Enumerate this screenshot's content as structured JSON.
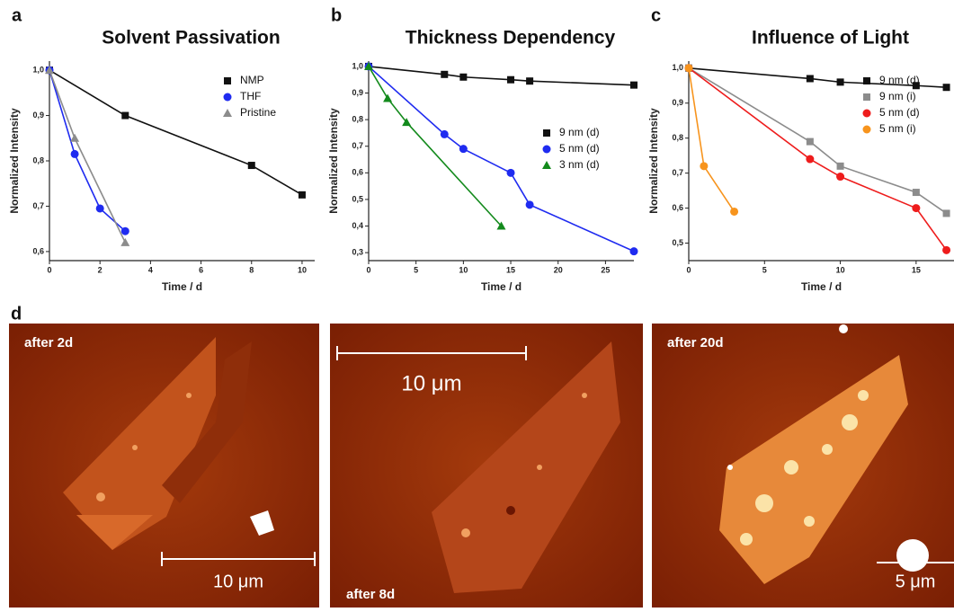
{
  "chart_data": [
    {
      "type": "line",
      "panel": "a",
      "title": "Solvent Passivation",
      "x_label": "Time / d",
      "y_label": "Normalized Intensity",
      "xlim": [
        0,
        10.5
      ],
      "ylim": [
        0.58,
        1.02
      ],
      "xticks": [
        0,
        2,
        4,
        6,
        8,
        10
      ],
      "yticks": [
        {
          "value": 0.6,
          "label": "0,6"
        },
        {
          "value": 0.7,
          "label": "0,7"
        },
        {
          "value": 0.8,
          "label": "0,8"
        },
        {
          "value": 0.9,
          "label": "0,9"
        },
        {
          "value": 1.0,
          "label": "1,0"
        }
      ],
      "legend": "upper right",
      "series": [
        {
          "name": "NMP",
          "color": "#111111",
          "marker": "square",
          "x": [
            0,
            3,
            8,
            10
          ],
          "values": [
            1.0,
            0.9,
            0.79,
            0.725
          ]
        },
        {
          "name": "THF",
          "color": "#1f2bf0",
          "marker": "circle",
          "x": [
            0,
            1,
            2,
            3
          ],
          "values": [
            1.0,
            0.815,
            0.695,
            0.645
          ]
        },
        {
          "name": "Pristine",
          "color": "#8c8c8c",
          "marker": "triangle",
          "x": [
            0,
            1,
            3
          ],
          "values": [
            1.0,
            0.85,
            0.62
          ]
        }
      ]
    },
    {
      "type": "line",
      "panel": "b",
      "title": "Thickness Dependency",
      "x_label": "Time / d",
      "y_label": "Normalized Intensity",
      "xlim": [
        0,
        28
      ],
      "ylim": [
        0.27,
        1.02
      ],
      "xticks": [
        0,
        5,
        10,
        15,
        20,
        25
      ],
      "yticks": [
        {
          "value": 0.3,
          "label": "0,3"
        },
        {
          "value": 0.4,
          "label": "0,4"
        },
        {
          "value": 0.5,
          "label": "0,5"
        },
        {
          "value": 0.6,
          "label": "0,6"
        },
        {
          "value": 0.7,
          "label": "0,7"
        },
        {
          "value": 0.8,
          "label": "0,8"
        },
        {
          "value": 0.9,
          "label": "0,9"
        },
        {
          "value": 1.0,
          "label": "1,0"
        }
      ],
      "legend": "right",
      "series": [
        {
          "name": "9 nm (d)",
          "color": "#111111",
          "marker": "square",
          "x": [
            0,
            8,
            10,
            15,
            17,
            28
          ],
          "values": [
            1.0,
            0.97,
            0.96,
            0.95,
            0.945,
            0.93
          ]
        },
        {
          "name": "5 nm (d)",
          "color": "#1f2bf0",
          "marker": "circle",
          "x": [
            0,
            8,
            10,
            15,
            17,
            28
          ],
          "values": [
            1.0,
            0.745,
            0.69,
            0.6,
            0.48,
            0.305
          ]
        },
        {
          "name": "3 nm (d)",
          "color": "#138a1c",
          "marker": "triangle",
          "x": [
            0,
            2,
            4,
            14
          ],
          "values": [
            1.0,
            0.88,
            0.79,
            0.4
          ]
        }
      ]
    },
    {
      "type": "line",
      "panel": "c",
      "title": "Influence of Light",
      "x_label": "Time / d",
      "y_label": "Normalized Intensity",
      "xlim": [
        0,
        17.5
      ],
      "ylim": [
        0.45,
        1.02
      ],
      "xticks": [
        0,
        5,
        10,
        15
      ],
      "yticks": [
        {
          "value": 0.5,
          "label": "0,5"
        },
        {
          "value": 0.6,
          "label": "0,6"
        },
        {
          "value": 0.7,
          "label": "0,7"
        },
        {
          "value": 0.8,
          "label": "0,8"
        },
        {
          "value": 0.9,
          "label": "0,9"
        },
        {
          "value": 1.0,
          "label": "1,0"
        }
      ],
      "legend": "upper right",
      "series": [
        {
          "name": "9 nm (d)",
          "color": "#111111",
          "marker": "square",
          "x": [
            0,
            8,
            10,
            15,
            17
          ],
          "values": [
            1.0,
            0.97,
            0.96,
            0.95,
            0.945
          ]
        },
        {
          "name": "9 nm (i)",
          "color": "#8c8c8c",
          "marker": "square",
          "x": [
            0,
            8,
            10,
            15,
            17
          ],
          "values": [
            1.0,
            0.79,
            0.72,
            0.645,
            0.585
          ]
        },
        {
          "name": "5 nm (d)",
          "color": "#ee1c1c",
          "marker": "circle",
          "x": [
            0,
            8,
            10,
            15,
            17
          ],
          "values": [
            1.0,
            0.74,
            0.69,
            0.6,
            0.48
          ]
        },
        {
          "name": "5 nm (i)",
          "color": "#f7941d",
          "marker": "circle",
          "x": [
            0,
            1,
            3
          ],
          "values": [
            1.0,
            0.72,
            0.59
          ]
        }
      ]
    }
  ],
  "images_panel": "d",
  "afm_images": [
    {
      "label": "after 2d",
      "scale_bar": "10 μm"
    },
    {
      "label": "after 8d",
      "scale_bar": "10 μm"
    },
    {
      "label": "after 20d",
      "scale_bar": "5 μm"
    }
  ]
}
